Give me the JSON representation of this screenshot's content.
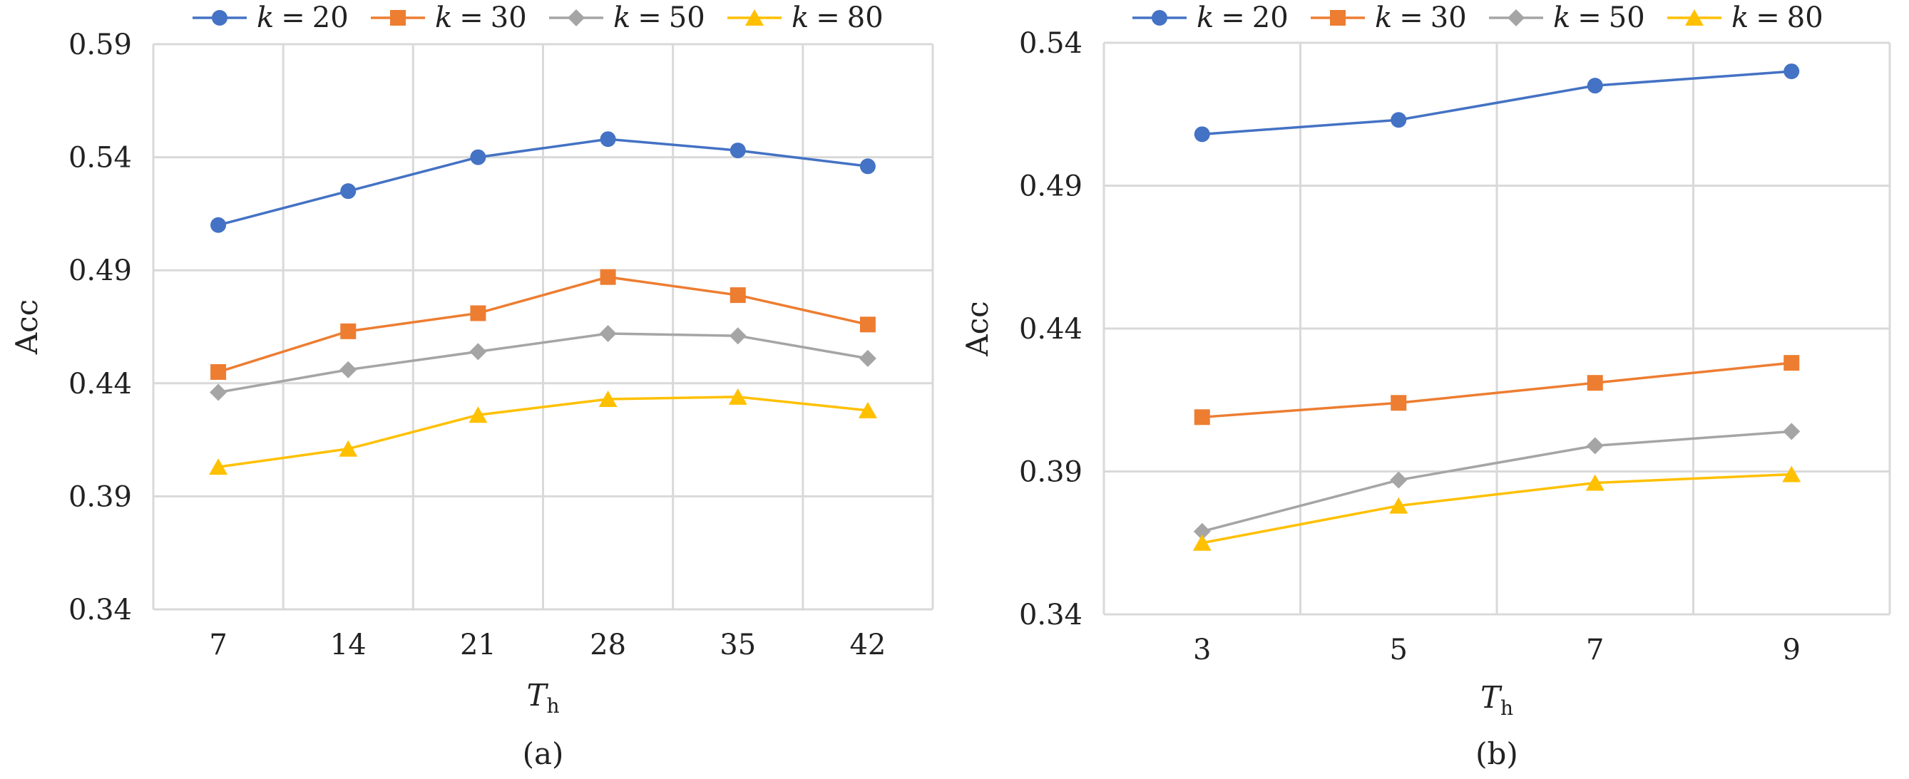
{
  "chart_data": [
    {
      "type": "line",
      "caption": "(a)",
      "xlabel": "T",
      "xlabel_sub": "h",
      "ylabel": "Acc",
      "ylim": [
        0.34,
        0.59
      ],
      "yticks": [
        "0.34",
        "0.39",
        "0.44",
        "0.49",
        "0.54",
        "0.59"
      ],
      "categories": [
        "7",
        "14",
        "21",
        "28",
        "35",
        "42"
      ],
      "grid": true,
      "legend_position": "top",
      "series": [
        {
          "name": "k = 20",
          "values": [
            0.51,
            0.525,
            0.54,
            0.548,
            0.543,
            0.536
          ]
        },
        {
          "name": "k = 30",
          "values": [
            0.445,
            0.463,
            0.471,
            0.487,
            0.479,
            0.466
          ]
        },
        {
          "name": "k = 50",
          "values": [
            0.436,
            0.446,
            0.454,
            0.462,
            0.461,
            0.451
          ]
        },
        {
          "name": "k = 80",
          "values": [
            0.403,
            0.411,
            0.426,
            0.433,
            0.434,
            0.428
          ]
        }
      ]
    },
    {
      "type": "line",
      "caption": "(b)",
      "xlabel": "T",
      "xlabel_sub": "h",
      "ylabel": "Acc",
      "ylim": [
        0.34,
        0.54
      ],
      "yticks": [
        "0.34",
        "0.39",
        "0.44",
        "0.49",
        "0.54"
      ],
      "categories": [
        "3",
        "5",
        "7",
        "9"
      ],
      "grid": true,
      "legend_position": "top",
      "series": [
        {
          "name": "k = 20",
          "values": [
            0.508,
            0.513,
            0.525,
            0.53
          ]
        },
        {
          "name": "k = 30",
          "values": [
            0.409,
            0.414,
            0.421,
            0.428
          ]
        },
        {
          "name": "k = 50",
          "values": [
            0.369,
            0.387,
            0.399,
            0.404
          ]
        },
        {
          "name": "k = 80",
          "values": [
            0.365,
            0.378,
            0.386,
            0.389
          ]
        }
      ]
    }
  ],
  "colors": {
    "k20": "#4472c4",
    "k30": "#ed7d31",
    "k50": "#a5a5a5",
    "k80": "#ffc000"
  },
  "markers": [
    "circle",
    "square",
    "diamond",
    "triangle"
  ],
  "legend": {
    "items": [
      {
        "var": "k",
        "eq": "=",
        "num": "20"
      },
      {
        "var": "k",
        "eq": "=",
        "num": "30"
      },
      {
        "var": "k",
        "eq": "=",
        "num": "50"
      },
      {
        "var": "k",
        "eq": "=",
        "num": "80"
      }
    ]
  }
}
